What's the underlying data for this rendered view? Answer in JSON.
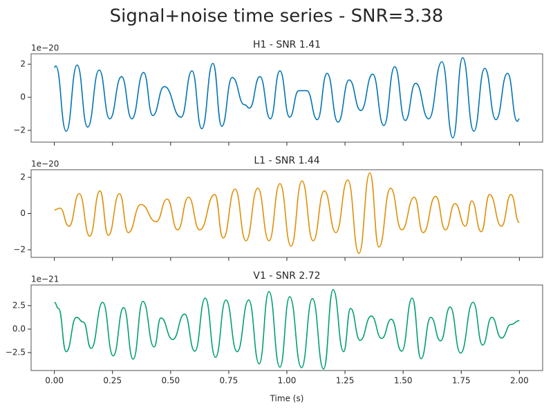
{
  "title": "Signal+noise time series - SNR=3.38",
  "chart_data": [
    {
      "type": "line",
      "title": "H1 - SNR 1.41",
      "offset_label": "1e−20",
      "ylim": [
        -2.71,
        2.63
      ],
      "yticks": [
        {
          "value": -2,
          "label": "−2"
        },
        0,
        2
      ],
      "series": [
        {
          "name": "H1",
          "color": "#0173b2",
          "x": [
            0,
            0.006,
            0.051,
            0.098,
            0.143,
            0.193,
            0.238,
            0.289,
            0.333,
            0.384,
            0.423,
            0.473,
            0.545,
            0.592,
            0.634,
            0.682,
            0.72,
            0.765,
            0.818,
            0.839,
            0.884,
            0.929,
            0.97,
            1.012,
            1.051,
            1.086,
            1.131,
            1.173,
            1.22,
            1.268,
            1.318,
            1.369,
            1.417,
            1.464,
            1.509,
            1.554,
            1.61,
            1.667,
            1.714,
            1.756,
            1.804,
            1.851,
            1.899,
            1.949,
            1.991,
            2.0
          ],
          "values": [
            1.8,
            1.9,
            -2.05,
            1.95,
            -1.8,
            1.65,
            -1.3,
            1.25,
            -1.3,
            1.5,
            -1.1,
            0.65,
            -1.2,
            1.6,
            -1.9,
            2.05,
            -1.75,
            1.2,
            -0.45,
            -0.65,
            1.25,
            -1.3,
            1.6,
            -1.2,
            0.4,
            0.4,
            -1.35,
            1.45,
            -1.5,
            1.05,
            -0.8,
            1.4,
            -1.7,
            1.85,
            -1.4,
            0.85,
            -1.3,
            2.15,
            -2.45,
            2.4,
            -2.05,
            1.75,
            -1.35,
            1.45,
            -1.45,
            -1.3
          ]
        }
      ]
    },
    {
      "type": "line",
      "title": "L1 - SNR 1.44",
      "offset_label": "1e−20",
      "ylim": [
        -2.42,
        2.42
      ],
      "yticks": [
        {
          "value": -2,
          "label": "−2"
        },
        0,
        2
      ],
      "series": [
        {
          "name": "L1",
          "color": "#de8f05",
          "x": [
            0,
            0.024,
            0.063,
            0.107,
            0.152,
            0.196,
            0.232,
            0.28,
            0.318,
            0.372,
            0.438,
            0.485,
            0.53,
            0.577,
            0.625,
            0.69,
            0.726,
            0.777,
            0.824,
            0.875,
            0.923,
            0.97,
            1.018,
            1.065,
            1.113,
            1.161,
            1.211,
            1.262,
            1.31,
            1.357,
            1.396,
            1.446,
            1.494,
            1.548,
            1.586,
            1.64,
            1.682,
            1.723,
            1.768,
            1.795,
            1.836,
            1.872,
            1.923,
            1.964,
            2.0
          ],
          "values": [
            0.2,
            0.3,
            -0.7,
            1.1,
            -1.25,
            1.25,
            -1.2,
            1.1,
            -1.05,
            0.5,
            -0.45,
            0.8,
            -0.9,
            0.9,
            -0.9,
            1.05,
            -1.35,
            1.35,
            -1.5,
            1.4,
            -1.5,
            1.65,
            -1.8,
            1.8,
            -1.5,
            1.25,
            -1.05,
            1.85,
            -2.2,
            2.25,
            -1.85,
            1.4,
            -0.9,
            0.9,
            -1.05,
            0.95,
            -0.9,
            0.55,
            -0.7,
            0.7,
            -1.0,
            1.05,
            -0.7,
            1.05,
            -0.5
          ]
        }
      ]
    },
    {
      "type": "line",
      "title": "V1 - SNR 2.72",
      "offset_label": "1e−21",
      "xlabel": "Time (s)",
      "xlim": [
        -0.1,
        2.1
      ],
      "xticks": [
        {
          "value": 0,
          "label": "0.00"
        },
        {
          "value": 0.25,
          "label": "0.25"
        },
        {
          "value": 0.5,
          "label": "0.50"
        },
        {
          "value": 0.75,
          "label": "0.75"
        },
        {
          "value": 1,
          "label": "1.00"
        },
        {
          "value": 1.25,
          "label": "1.25"
        },
        {
          "value": 1.5,
          "label": "1.50"
        },
        {
          "value": 1.75,
          "label": "1.75"
        },
        {
          "value": 2,
          "label": "2.00"
        }
      ],
      "ylim": [
        -4.41,
        4.7
      ],
      "yticks": [
        {
          "value": -2.5,
          "label": "−2.5"
        },
        {
          "value": 0,
          "label": "0.0"
        },
        2.5
      ],
      "series": [
        {
          "name": "V1",
          "color": "#029e73",
          "x": [
            0,
            0.018,
            0.051,
            0.095,
            0.125,
            0.158,
            0.208,
            0.253,
            0.298,
            0.339,
            0.381,
            0.429,
            0.458,
            0.509,
            0.56,
            0.604,
            0.649,
            0.693,
            0.738,
            0.786,
            0.836,
            0.881,
            0.923,
            0.97,
            1.012,
            1.063,
            1.11,
            1.158,
            1.199,
            1.244,
            1.274,
            1.315,
            1.363,
            1.408,
            1.449,
            1.494,
            1.539,
            1.577,
            1.619,
            1.661,
            1.702,
            1.747,
            1.801,
            1.842,
            1.881,
            1.923,
            1.964,
            2.0
          ],
          "values": [
            2.85,
            2.2,
            -2.4,
            1.25,
            0.75,
            -2.05,
            2.85,
            -2.85,
            2.3,
            -3.2,
            2.95,
            -1.9,
            1.2,
            -1.1,
            1.6,
            -2.35,
            3.3,
            -3.0,
            3.1,
            -2.4,
            3.1,
            -3.7,
            4.0,
            -4.05,
            3.45,
            -4.1,
            3.25,
            -4.25,
            4.2,
            -2.4,
            2.2,
            -1.2,
            1.4,
            -1.0,
            1.05,
            -2.35,
            3.3,
            -3.15,
            1.25,
            -1.25,
            2.35,
            -2.55,
            2.85,
            -1.7,
            1.25,
            -0.95,
            0.5,
            0.9
          ]
        }
      ]
    }
  ]
}
